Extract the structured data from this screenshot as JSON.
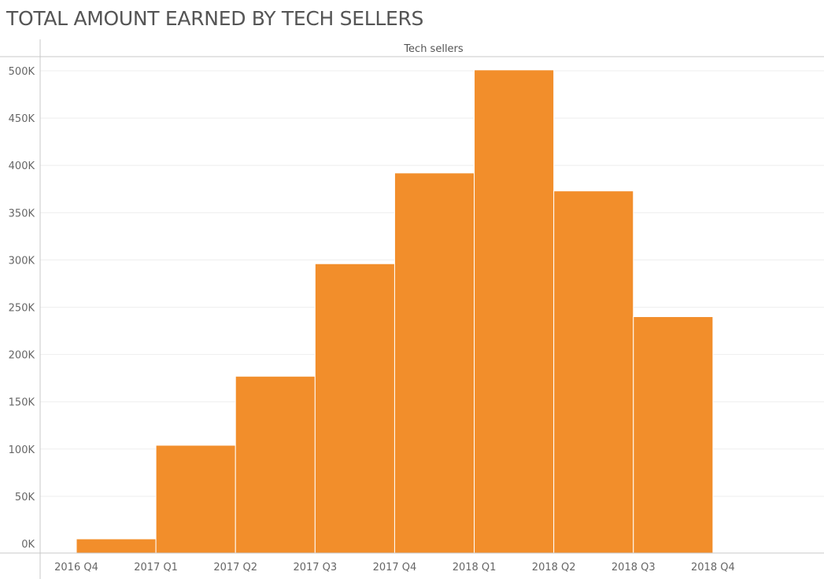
{
  "title": "TOTAL AMOUNT EARNED BY TECH SELLERS",
  "chart_data": {
    "type": "bar",
    "title": "TOTAL AMOUNT EARNED BY TECH SELLERS",
    "pane_header": "Tech sellers",
    "xlabel": "",
    "ylabel": "",
    "categories": [
      "2016 Q4",
      "2017 Q1",
      "2017 Q2",
      "2017 Q3",
      "2017 Q4",
      "2018 Q1",
      "2018 Q2",
      "2018 Q3",
      "2018 Q4"
    ],
    "series": [
      {
        "values": [
          5000,
          104000,
          177000,
          296000,
          392000,
          501000,
          373000,
          240000,
          0
        ],
        "color": "#F28E2B"
      }
    ],
    "ylim": [
      -10000,
      515000
    ],
    "y_ticks": [
      0,
      50000,
      100000,
      150000,
      200000,
      250000,
      300000,
      350000,
      400000,
      450000,
      500000
    ],
    "y_tick_labels": [
      "0K",
      "50K",
      "100K",
      "150K",
      "200K",
      "250K",
      "300K",
      "350K",
      "400K",
      "450K",
      "500K"
    ],
    "grid": true,
    "legend": "none"
  }
}
